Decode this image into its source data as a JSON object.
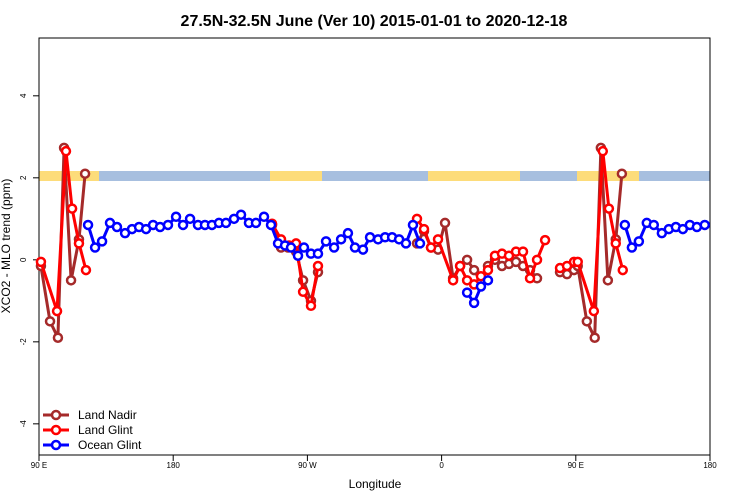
{
  "chart_data": {
    "type": "line",
    "title": "27.5N-32.5N June (Ver 10)   2015-01-01 to 2020-12-18",
    "x_label": "Longitude",
    "y_label": "XCO2 - MLO trend (ppm)",
    "xlim": [
      90,
      540
    ],
    "ylim": [
      -4.76,
      5.41
    ],
    "xticks": [
      {
        "value": 90,
        "label": "90 E"
      },
      180,
      {
        "value": 270,
        "label": "90 W"
      },
      {
        "value": 360,
        "label": "0"
      },
      {
        "value": 450,
        "label": "90 E"
      },
      {
        "value": 540,
        "label": "180"
      }
    ],
    "yticks": [
      -4,
      -2,
      0,
      2,
      4
    ],
    "grid": false,
    "legend": "bottom-left",
    "series": [
      {
        "name": "Land Nadir",
        "color": "#a52a2a",
        "x": [
          91.3,
          97.4,
          102.7,
          106.8,
          111.5,
          116.8,
          120.9,
          null,
          246.3,
          252.3,
          257,
          262.4,
          267.1,
          272.4,
          277.1,
          null,
          343.5,
          348.2,
          352.9,
          357.6,
          362.3,
          367.7,
          372.4,
          377.1,
          381.8,
          386.4,
          391.1,
          395.8,
          400.5,
          405.2,
          409.9,
          414.6,
          419.3,
          424.0,
          null,
          439.4,
          444.1,
          448.8,
          451.3,
          457.4,
          462.7,
          466.8,
          471.5,
          476.8,
          480.9
        ],
        "values": [
          -0.15,
          -1.5,
          -1.9,
          2.73,
          -0.5,
          0.5,
          2.1,
          null,
          0.85,
          0.3,
          0.3,
          0.2,
          -0.5,
          -1.0,
          -0.3,
          null,
          0.4,
          0.7,
          0.3,
          0.25,
          0.9,
          -0.45,
          -0.15,
          0.0,
          -0.25,
          -0.55,
          -0.15,
          0.0,
          -0.15,
          -0.1,
          -0.05,
          -0.15,
          -0.25,
          -0.45,
          null,
          -0.3,
          -0.35,
          -0.25,
          -0.15,
          -1.5,
          -1.9,
          2.73,
          -0.5,
          0.5,
          2.1
        ]
      },
      {
        "name": "Land Glint",
        "color": "#ff0000",
        "x": [
          91.3,
          102.1,
          108.1,
          112.2,
          116.8,
          121.5,
          null,
          246.3,
          252.3,
          257.7,
          262.4,
          267.1,
          272.4,
          277.1,
          null,
          343.5,
          348.2,
          352.9,
          357.6,
          367.7,
          372.4,
          377.1,
          381.8,
          386.4,
          391.1,
          395.8,
          400.5,
          405.2,
          409.9,
          414.6,
          419.3,
          424.0,
          429.4,
          null,
          439.4,
          444.1,
          448.8,
          451.3,
          462.1,
          468.1,
          472.2,
          476.8,
          481.5
        ],
        "values": [
          -0.05,
          -1.25,
          2.65,
          1.25,
          0.4,
          -0.25,
          null,
          0.88,
          0.5,
          0.35,
          0.4,
          -0.78,
          -1.12,
          -0.15,
          null,
          1.0,
          0.75,
          0.3,
          0.5,
          -0.5,
          -0.15,
          -0.5,
          -0.6,
          -0.4,
          -0.25,
          0.1,
          0.15,
          0.1,
          0.2,
          0.2,
          -0.45,
          0.0,
          0.48,
          null,
          -0.2,
          -0.15,
          -0.05,
          -0.05,
          -1.25,
          2.65,
          1.25,
          0.4,
          -0.25
        ]
      },
      {
        "name": "Ocean Glint",
        "color": "#0000ff",
        "x": [
          122.9,
          127.6,
          132.3,
          137.6,
          142.3,
          147.7,
          152.4,
          157.1,
          161.8,
          166.5,
          171.2,
          176.5,
          181.9,
          186.6,
          191.3,
          196.6,
          201.3,
          206,
          210.7,
          215.4,
          220.8,
          225.5,
          230.8,
          235.5,
          240.9,
          245.6,
          250.3,
          255,
          259,
          263.7,
          267.7,
          272.4,
          277.1,
          282.5,
          287.9,
          292.6,
          297.2,
          301.9,
          307.3,
          312,
          317.4,
          322.1,
          326.8,
          331.5,
          336.1,
          340.8,
          345.5,
          null,
          377.1,
          381.8,
          386.4,
          391.1,
          null,
          482.9,
          487.6,
          492.3,
          497.6,
          502.3,
          507.7,
          512.4,
          517.1,
          521.8,
          526.5,
          531.2,
          536.5
        ],
        "values": [
          0.85,
          0.3,
          0.45,
          0.9,
          0.8,
          0.65,
          0.75,
          0.8,
          0.75,
          0.85,
          0.8,
          0.85,
          1.05,
          0.85,
          1.0,
          0.85,
          0.85,
          0.85,
          0.9,
          0.9,
          1.0,
          1.1,
          0.9,
          0.9,
          1.05,
          0.85,
          0.4,
          0.35,
          0.3,
          0.1,
          0.3,
          0.15,
          0.15,
          0.45,
          0.3,
          0.5,
          0.65,
          0.3,
          0.25,
          0.55,
          0.5,
          0.55,
          0.55,
          0.5,
          0.4,
          0.85,
          0.4,
          null,
          -0.8,
          -1.05,
          -0.65,
          -0.5,
          null,
          0.85,
          0.3,
          0.45,
          0.9,
          0.85,
          0.65,
          0.75,
          0.8,
          0.75,
          0.85,
          0.8,
          0.85
        ]
      }
    ]
  }
}
